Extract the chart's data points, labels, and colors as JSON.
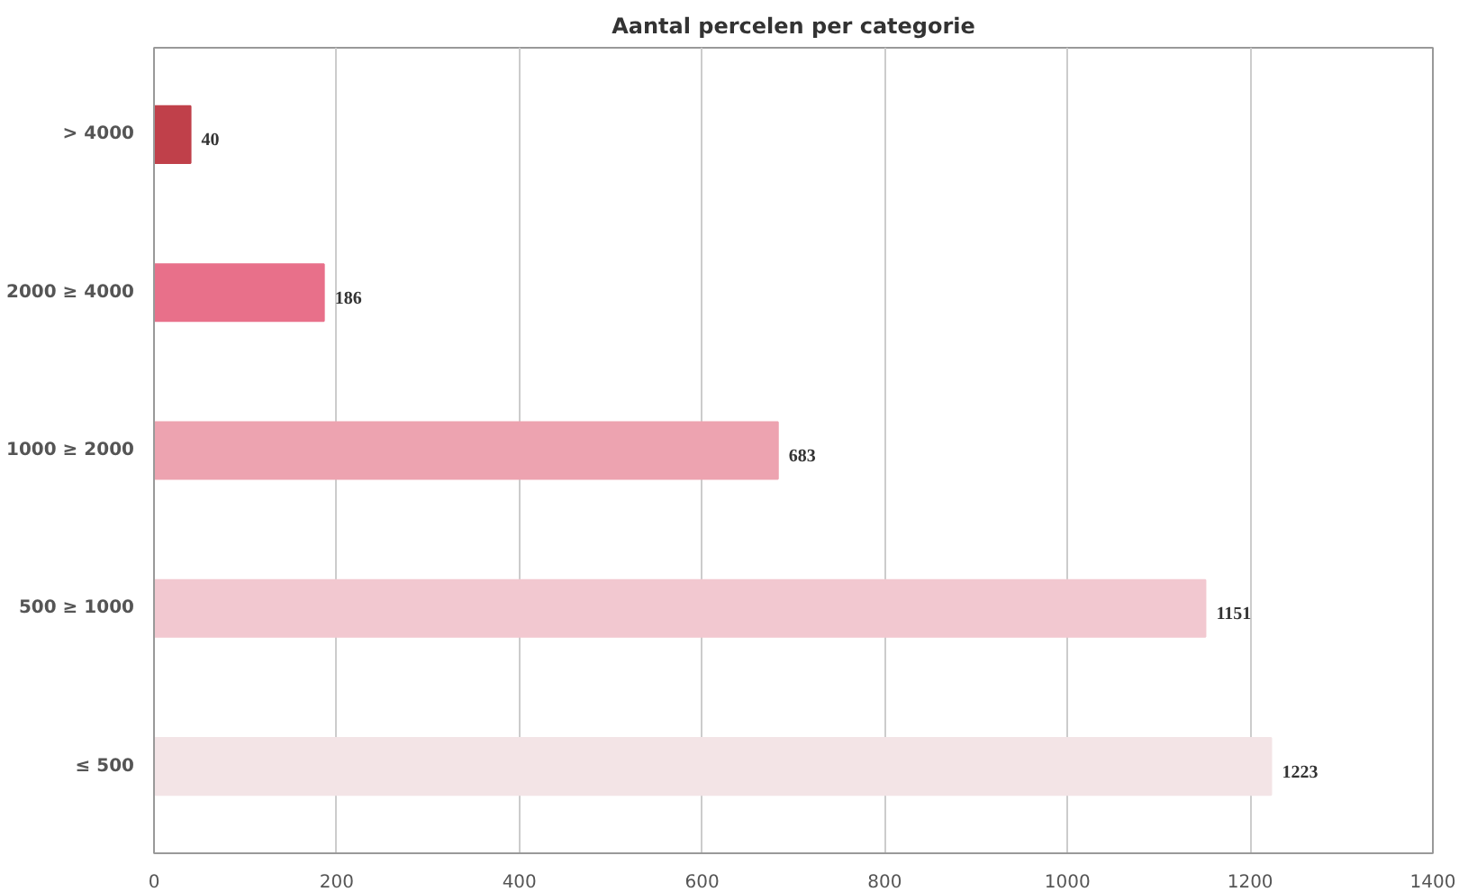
{
  "chart_data": {
    "type": "bar",
    "orientation": "horizontal",
    "title": "Aantal percelen per categorie",
    "categories": [
      "> 4000",
      "2000 ≥ 4000",
      "1000 ≥ 2000",
      "500 ≥ 1000",
      "≤ 500"
    ],
    "values": [
      40,
      186,
      683,
      1151,
      1223
    ],
    "colors": [
      "#c0404a",
      "#e8708a",
      "#eda3b0",
      "#f2c8d0",
      "#f3e4e6"
    ],
    "xlim": [
      0,
      1400
    ],
    "xticks": [
      0,
      200,
      400,
      600,
      800,
      1000,
      1200,
      1400
    ],
    "grid": "x",
    "data_labels": true
  }
}
